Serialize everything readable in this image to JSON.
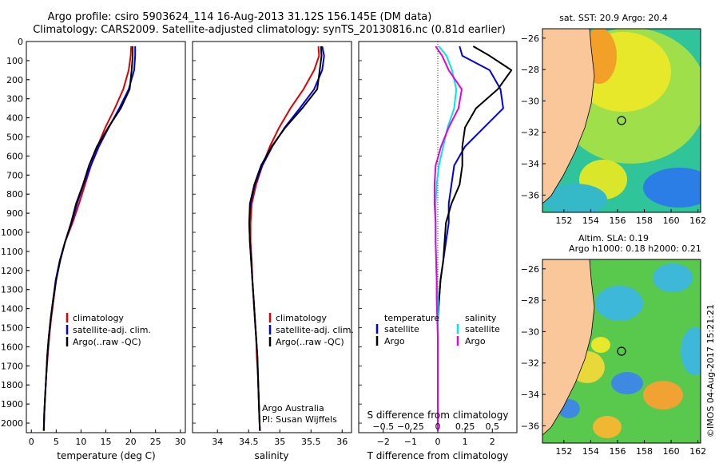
{
  "header": {
    "title_line1": "Argo profile: csiro 5903624_114 16-Aug-2013 31.12S 156.145E (DM data)",
    "title_line2": "Climatology: CARS2009. Satellite-adjusted climatology: synTS_20130816.nc (0.81d earlier)"
  },
  "side_stamp": "©IMOS 04-Aug-2017 15:21:21",
  "colors": {
    "climatology": "#e00000",
    "satellite": "#0000e6",
    "argo": "#000000",
    "salinity_satellite": "#00e5e5",
    "salinity_argo": "#e600e6",
    "land": "#f9c79a"
  },
  "chart_data": [
    {
      "type": "line",
      "id": "temperature",
      "xlabel": "temperature (deg C)",
      "xlim": [
        -1,
        31
      ],
      "xticks": [
        0,
        5,
        10,
        15,
        20,
        25,
        30
      ],
      "ylim": [
        2050,
        0
      ],
      "yticks": [
        0,
        100,
        200,
        300,
        400,
        500,
        600,
        700,
        800,
        900,
        1000,
        1100,
        1200,
        1300,
        1400,
        1500,
        1600,
        1700,
        1800,
        1900,
        2000
      ],
      "legend": [
        "climatology",
        "satellite-adj. clim.",
        "Argo(..raw -QC)"
      ],
      "series": [
        {
          "name": "climatology",
          "color": "#e00000",
          "x": [
            20.1,
            20.0,
            19.6,
            18.5,
            16.8,
            14.9,
            13.3,
            12.0,
            10.8,
            9.6,
            8.3,
            6.8,
            5.7,
            5.0,
            4.5,
            4.0,
            3.6,
            3.3,
            3.0,
            2.8,
            2.6,
            2.5
          ],
          "y": [
            25,
            75,
            150,
            250,
            350,
            450,
            550,
            650,
            750,
            850,
            950,
            1050,
            1150,
            1250,
            1350,
            1450,
            1550,
            1650,
            1750,
            1850,
            1950,
            2040
          ]
        },
        {
          "name": "satellite-adj. clim.",
          "color": "#0000e6",
          "x": [
            20.9,
            20.9,
            20.7,
            19.6,
            17.7,
            15.6,
            13.6,
            12.0,
            10.5,
            9.2,
            8.1,
            6.8,
            5.7,
            4.9,
            4.4,
            3.9,
            3.5,
            3.2,
            3.0,
            2.8,
            2.6,
            2.5
          ],
          "y": [
            25,
            75,
            150,
            250,
            350,
            450,
            550,
            650,
            750,
            850,
            950,
            1050,
            1150,
            1250,
            1350,
            1450,
            1550,
            1650,
            1750,
            1850,
            1950,
            2040
          ]
        },
        {
          "name": "Argo(..raw -QC)",
          "color": "#000000",
          "x": [
            20.4,
            20.4,
            20.2,
            19.8,
            18.0,
            15.5,
            13.2,
            11.6,
            10.4,
            9.0,
            8.0,
            6.8,
            5.8,
            5.0,
            4.4,
            3.9,
            3.5,
            3.2,
            3.0,
            2.8,
            2.6,
            2.5
          ],
          "y": [
            25,
            75,
            150,
            250,
            350,
            450,
            550,
            650,
            750,
            850,
            950,
            1050,
            1150,
            1250,
            1350,
            1450,
            1550,
            1650,
            1750,
            1850,
            1950,
            2040
          ]
        }
      ]
    },
    {
      "type": "line",
      "id": "salinity",
      "xlabel": "salinity",
      "xlim": [
        33.6,
        36.15
      ],
      "xticks": [
        34,
        34.5,
        35,
        35.5,
        36
      ],
      "ylim": [
        2050,
        0
      ],
      "legend": [
        "climatology",
        "satellite-adj. clim.",
        "Argo(..raw -QC)"
      ],
      "annotation": [
        "Argo Australia",
        "PI: Susan Wijffels"
      ],
      "series": [
        {
          "name": "climatology",
          "color": "#e00000",
          "x": [
            35.62,
            35.63,
            35.55,
            35.38,
            35.17,
            34.99,
            34.84,
            34.72,
            34.62,
            34.55,
            34.53,
            34.53,
            34.55,
            34.56,
            34.58,
            34.6,
            34.62,
            34.63,
            34.65,
            34.66,
            34.67,
            34.68
          ],
          "y": [
            25,
            75,
            150,
            250,
            350,
            450,
            550,
            650,
            750,
            850,
            950,
            1050,
            1150,
            1250,
            1350,
            1450,
            1550,
            1650,
            1750,
            1850,
            1950,
            2040
          ]
        },
        {
          "name": "satellite-adj. clim.",
          "color": "#0000e6",
          "x": [
            35.68,
            35.71,
            35.68,
            35.55,
            35.32,
            35.08,
            34.88,
            34.72,
            34.6,
            34.53,
            34.51,
            34.52,
            34.54,
            34.56,
            34.58,
            34.6,
            34.62,
            34.64,
            34.65,
            34.66,
            34.67,
            34.68
          ],
          "y": [
            25,
            75,
            150,
            250,
            350,
            450,
            550,
            650,
            750,
            850,
            950,
            1050,
            1150,
            1250,
            1350,
            1450,
            1550,
            1650,
            1750,
            1850,
            1950,
            2040
          ]
        },
        {
          "name": "Argo(..raw -QC)",
          "color": "#000000",
          "x": [
            35.66,
            35.67,
            35.64,
            35.6,
            35.36,
            35.09,
            34.87,
            34.7,
            34.59,
            34.52,
            34.51,
            34.52,
            34.54,
            34.56,
            34.58,
            34.6,
            34.62,
            34.64,
            34.65,
            34.66,
            34.67,
            34.68
          ],
          "y": [
            25,
            75,
            150,
            250,
            350,
            450,
            550,
            650,
            750,
            850,
            950,
            1050,
            1150,
            1250,
            1350,
            1450,
            1550,
            1650,
            1750,
            1850,
            1950,
            2040
          ]
        }
      ]
    },
    {
      "type": "line",
      "id": "difference",
      "xlabel": "T difference from climatology",
      "xlabel_top": "S difference from climatology",
      "xlim": [
        -2.9,
        2.9
      ],
      "xticks": [
        -2,
        -1,
        0,
        1,
        2
      ],
      "xticks_salinity": [
        -0.5,
        -0.25,
        0,
        0.25,
        0.5
      ],
      "salinity_scale": 4,
      "legend_temperature": {
        "title": "temperature",
        "items": [
          "satellite",
          "Argo"
        ]
      },
      "legend_salinity": {
        "title": "salinity",
        "items": [
          "satellite",
          "Argo"
        ]
      },
      "ylim": [
        2050,
        0
      ],
      "series": [
        {
          "name": "temperature satellite",
          "color": "#0000e6",
          "x": [
            0.8,
            0.9,
            1.9,
            2.3,
            2.4,
            1.7,
            1.0,
            0.6,
            0.5,
            0.4,
            0.4,
            0.3,
            0.2,
            0.1,
            0.05,
            0.0,
            0.0,
            0.0,
            0.0,
            0.0,
            0.0,
            0.0
          ],
          "y": [
            25,
            75,
            150,
            250,
            350,
            450,
            550,
            650,
            750,
            850,
            950,
            1050,
            1150,
            1250,
            1350,
            1450,
            1550,
            1650,
            1750,
            1850,
            1950,
            2040
          ]
        },
        {
          "name": "temperature Argo",
          "color": "#000000",
          "x": [
            1.3,
            1.9,
            2.7,
            2.2,
            1.4,
            1.0,
            0.9,
            0.9,
            0.8,
            0.5,
            0.3,
            0.25,
            0.2,
            0.1,
            0.05,
            0.0,
            0.0,
            0.0,
            0.0,
            0.0,
            0.0,
            0.0
          ],
          "y": [
            25,
            75,
            150,
            250,
            350,
            450,
            550,
            650,
            750,
            850,
            950,
            1050,
            1150,
            1250,
            1350,
            1450,
            1550,
            1650,
            1750,
            1850,
            1950,
            2040
          ]
        },
        {
          "name": "salinity satellite",
          "color": "#00e5e5",
          "x": [
            0.01,
            0.08,
            0.13,
            0.17,
            0.15,
            0.09,
            0.05,
            0.01,
            -0.01,
            -0.02,
            -0.02,
            -0.02,
            -0.015,
            -0.01,
            0.0,
            0.0,
            0.0,
            0.0,
            0.0,
            0.0,
            0.0,
            0.0
          ],
          "y": [
            25,
            75,
            150,
            250,
            350,
            450,
            550,
            650,
            750,
            850,
            950,
            1050,
            1150,
            1250,
            1350,
            1450,
            1550,
            1650,
            1750,
            1850,
            1950,
            2040
          ]
        },
        {
          "name": "salinity Argo",
          "color": "#e600e6",
          "x": [
            -0.02,
            0.04,
            0.1,
            0.22,
            0.19,
            0.1,
            0.03,
            -0.02,
            -0.03,
            -0.03,
            -0.02,
            -0.02,
            -0.015,
            -0.01,
            -0.01,
            -0.005,
            0.0,
            0.0,
            0.0,
            0.0,
            0.0,
            0.0
          ],
          "y": [
            25,
            75,
            150,
            250,
            350,
            450,
            550,
            650,
            750,
            850,
            950,
            1050,
            1150,
            1250,
            1350,
            1450,
            1550,
            1650,
            1750,
            1850,
            1950,
            2040
          ]
        }
      ]
    },
    {
      "type": "heatmap",
      "id": "sst-map",
      "title": "sat. SST: 20.9  Argo: 20.4",
      "xlim": [
        150.4,
        162.2
      ],
      "ylim": [
        -37.1,
        -25.4
      ],
      "xticks": [
        152,
        154,
        156,
        158,
        160,
        162
      ],
      "yticks": [
        -26,
        -28,
        -30,
        -32,
        -34,
        -36
      ],
      "marker": {
        "lon": 156.145,
        "lat": -31.12
      }
    },
    {
      "type": "heatmap",
      "id": "sla-map",
      "title": "Altim. SLA: 0.19",
      "title2": "Argo h1000: 0.18  h2000: 0.21",
      "xlim": [
        150.4,
        162.2
      ],
      "ylim": [
        -37.1,
        -25.4
      ],
      "xticks": [
        152,
        154,
        156,
        158,
        160,
        162
      ],
      "yticks": [
        -26,
        -28,
        -30,
        -32,
        -34,
        -36
      ],
      "marker": {
        "lon": 156.145,
        "lat": -31.12
      }
    }
  ]
}
